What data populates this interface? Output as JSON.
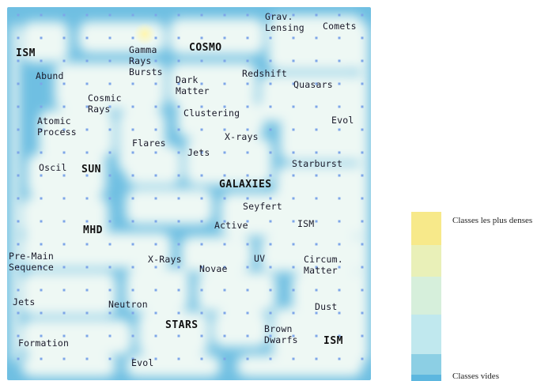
{
  "map": {
    "major_labels": [
      "ISM",
      "COSMO",
      "SUN",
      "GALAXIES",
      "MHD",
      "STARS",
      "ISM"
    ],
    "labels": [
      "Gamma\nRays\nBursts",
      "Grav.\nLensing",
      "Comets",
      "Abund",
      "Redshift",
      "Dark\nMatter",
      "Quasars",
      "Cosmic\nRays",
      "Clustering",
      "Atomic\nProcess",
      "Evol",
      "X-rays",
      "Flares",
      "Jets",
      "Starburst",
      "Oscil",
      "Seyfert",
      "Active",
      "ISM",
      "Pre-Main\nSequence",
      "X-Rays",
      "Novae",
      "UV",
      "Circum.\nMatter",
      "Jets",
      "Neutron",
      "Dust",
      "Brown\nDwarfs",
      "Formation",
      "Evol"
    ]
  },
  "legend": {
    "top_label": "Classes les plus denses",
    "bottom_label": "Classes vides",
    "colors": [
      "#f7e98a",
      "#e9f0b8",
      "#d6efdb",
      "#c0e8ee",
      "#8ccfe4",
      "#5db7df"
    ]
  }
}
